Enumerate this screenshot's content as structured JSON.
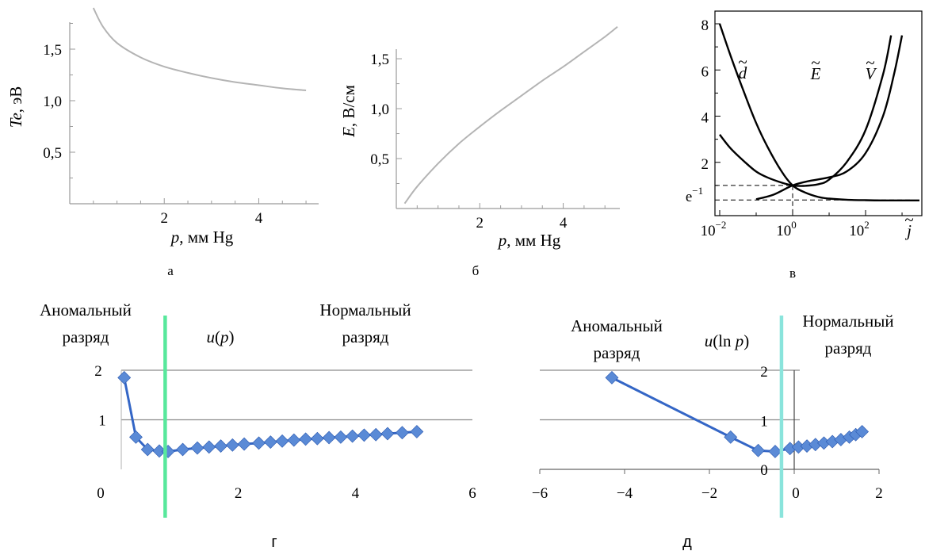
{
  "chart_data": [
    {
      "panel": "а",
      "type": "line",
      "xlabel": "p, мм Hg",
      "ylabel": "Te, эВ",
      "xlim": [
        0,
        5.2
      ],
      "ylim": [
        0,
        1.9
      ],
      "xticks": [
        "2",
        "4"
      ],
      "yticks": [
        "0,5",
        "1,0",
        "1,5"
      ],
      "series": [
        {
          "x": [
            0.5,
            0.7,
            1.0,
            1.5,
            2.0,
            2.5,
            3.0,
            3.5,
            4.0,
            4.5,
            5.0
          ],
          "y": [
            1.9,
            1.72,
            1.56,
            1.42,
            1.33,
            1.27,
            1.22,
            1.18,
            1.15,
            1.12,
            1.1
          ]
        }
      ],
      "grid": false
    },
    {
      "panel": "б",
      "type": "line",
      "xlabel": "p, мм Hg",
      "ylabel": "E, В/см",
      "xlim": [
        0,
        5.3
      ],
      "ylim": [
        0,
        1.85
      ],
      "xticks": [
        "2",
        "4"
      ],
      "yticks": [
        "0,5",
        "1,0",
        "1,5"
      ],
      "series": [
        {
          "x": [
            0.2,
            0.5,
            1.0,
            1.5,
            2.0,
            2.5,
            3.0,
            3.5,
            4.0,
            4.5,
            5.0,
            5.3
          ],
          "y": [
            0.05,
            0.22,
            0.45,
            0.65,
            0.82,
            0.98,
            1.13,
            1.28,
            1.42,
            1.57,
            1.72,
            1.82
          ]
        }
      ],
      "grid": false
    },
    {
      "panel": "в",
      "type": "line",
      "xlabel": "j̃",
      "ylabel": "",
      "x_scale": "log",
      "xlim": [
        0.01,
        3000
      ],
      "ylim": [
        0,
        8
      ],
      "xticks": [
        "10",
        "10",
        "10"
      ],
      "xtick_exponents": [
        "−2",
        "0",
        "2"
      ],
      "yticks": [
        "2",
        "4",
        "6",
        "8"
      ],
      "ytick_extra": {
        "base": "e",
        "exp": "−1",
        "value": 0.37
      },
      "reference_lines": [
        {
          "orientation": "horizontal",
          "y": 1
        },
        {
          "orientation": "horizontal",
          "y": 0.37
        },
        {
          "orientation": "vertical",
          "x": 1
        }
      ],
      "curve_labels": [
        {
          "base": "d",
          "mark": "~"
        },
        {
          "base": "E",
          "mark": "~"
        },
        {
          "base": "V",
          "mark": "~"
        }
      ],
      "series": [
        {
          "x": [
            0.01,
            0.02,
            0.05,
            0.1,
            0.2,
            0.5,
            1,
            2,
            5,
            10,
            30,
            100,
            300,
            1000,
            3000
          ],
          "y": [
            8,
            6.6,
            4.9,
            3.7,
            2.7,
            1.6,
            1.0,
            0.72,
            0.5,
            0.43,
            0.38,
            0.36,
            0.35,
            0.35,
            0.35
          ]
        },
        {
          "x": [
            0.01,
            0.02,
            0.05,
            0.1,
            0.2,
            0.5,
            1,
            2,
            5,
            10,
            30,
            100,
            300,
            500
          ],
          "y": [
            3.2,
            2.6,
            2.0,
            1.6,
            1.35,
            1.12,
            1.0,
            0.98,
            1.05,
            1.25,
            2.0,
            3.4,
            5.8,
            7.5
          ]
        },
        {
          "x": [
            0.1,
            0.3,
            1,
            3,
            10,
            30,
            100,
            300,
            600,
            1000
          ],
          "y": [
            0.4,
            0.6,
            1.0,
            1.2,
            1.35,
            1.6,
            2.4,
            4.0,
            5.8,
            7.5
          ]
        }
      ]
    },
    {
      "panel": "г",
      "type": "line",
      "title": "u(p)",
      "xlim": [
        0,
        6
      ],
      "ylim": [
        0,
        2
      ],
      "xticks": [
        "0",
        "2",
        "4",
        "6"
      ],
      "yticks": [
        "1",
        "2"
      ],
      "grid": true,
      "vline_x": 0.75,
      "vline_color": "#58e89c",
      "annotations": [
        {
          "text": [
            "Аномальный",
            "разряд"
          ]
        },
        {
          "text": [
            "Нормальный",
            "разряд"
          ]
        }
      ],
      "series": [
        {
          "color": "#3466c6",
          "x": [
            0.05,
            0.25,
            0.45,
            0.65,
            0.8,
            1.05,
            1.3,
            1.5,
            1.7,
            1.9,
            2.1,
            2.35,
            2.55,
            2.75,
            2.95,
            3.15,
            3.35,
            3.55,
            3.75,
            3.95,
            4.15,
            4.35,
            4.55,
            4.8,
            5.05
          ],
          "y": [
            1.85,
            0.65,
            0.4,
            0.37,
            0.36,
            0.4,
            0.43,
            0.45,
            0.47,
            0.49,
            0.51,
            0.53,
            0.55,
            0.57,
            0.59,
            0.61,
            0.62,
            0.64,
            0.65,
            0.67,
            0.69,
            0.7,
            0.72,
            0.74,
            0.76
          ]
        }
      ]
    },
    {
      "panel": "д",
      "type": "line",
      "title": "u(ln p)",
      "xlim": [
        -6,
        2
      ],
      "ylim": [
        0,
        2
      ],
      "xticks": [
        "−6",
        "−4",
        "−2",
        "0",
        "2"
      ],
      "yticks": [
        "0",
        "1",
        "2"
      ],
      "grid": true,
      "vline_x": -0.3,
      "vline_color": "#8ae4dc",
      "annotations": [
        {
          "text": [
            "Аномальный",
            "разряд"
          ]
        },
        {
          "text": [
            "Нормальный",
            "разряд"
          ]
        }
      ],
      "series": [
        {
          "color": "#3466c6",
          "x": [
            -4.3,
            -1.5,
            -0.85,
            -0.45,
            -0.1,
            0.1,
            0.3,
            0.5,
            0.7,
            0.9,
            1.1,
            1.3,
            1.45,
            1.6
          ],
          "y": [
            1.85,
            0.65,
            0.38,
            0.36,
            0.42,
            0.45,
            0.47,
            0.5,
            0.53,
            0.56,
            0.6,
            0.65,
            0.7,
            0.76
          ]
        }
      ]
    }
  ]
}
